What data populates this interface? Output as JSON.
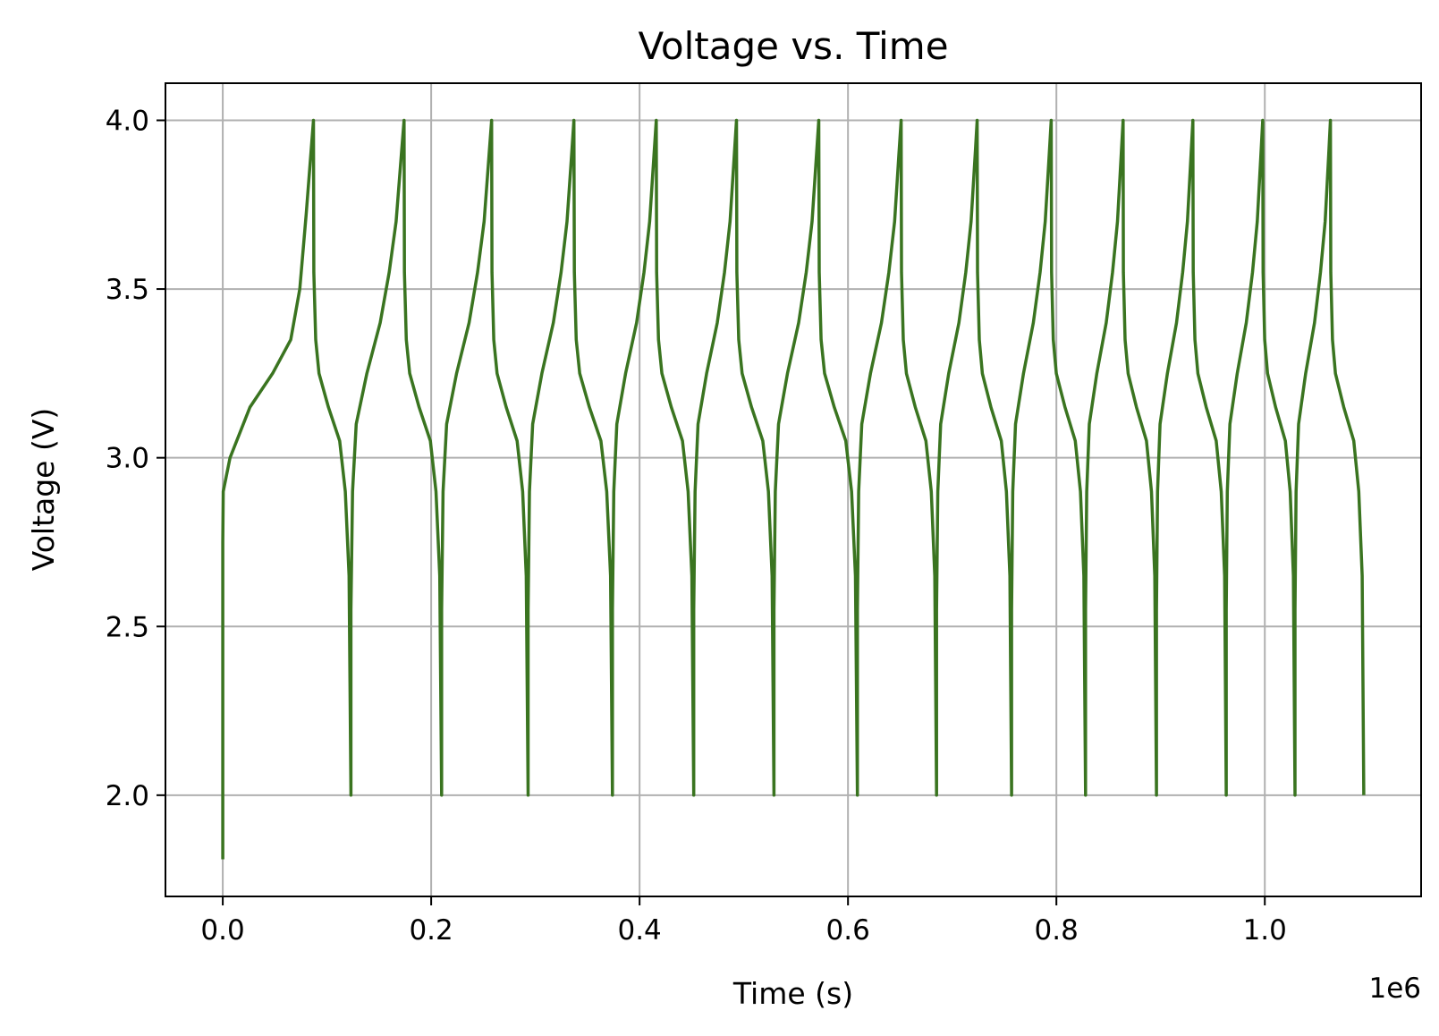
{
  "chart_data": {
    "type": "line",
    "title": "Voltage vs. Time",
    "xlabel": "Time (s)",
    "ylabel": "Voltage (V)",
    "x_multiplier_label": "1e6",
    "xlim": [
      -0.055,
      1.15
    ],
    "ylim": [
      1.7,
      4.11
    ],
    "x_ticks": [
      0.0,
      0.2,
      0.4,
      0.6,
      0.8,
      1.0
    ],
    "x_tick_labels": [
      "0.0",
      "0.2",
      "0.4",
      "0.6",
      "0.8",
      "1.0"
    ],
    "y_ticks": [
      2.0,
      2.5,
      3.0,
      3.5,
      4.0
    ],
    "y_tick_labels": [
      "2.0",
      "2.5",
      "3.0",
      "3.5",
      "4.0"
    ],
    "grid": true,
    "line_color": "#3a7420",
    "initial_point": [
      0.0,
      1.81
    ],
    "cycles": [
      {
        "charge_start": 0.0,
        "charge_end": 0.087,
        "discharge_end": 0.123
      },
      {
        "charge_start": 0.123,
        "charge_end": 0.174,
        "discharge_end": 0.21
      },
      {
        "charge_start": 0.21,
        "charge_end": 0.258,
        "discharge_end": 0.293
      },
      {
        "charge_start": 0.293,
        "charge_end": 0.337,
        "discharge_end": 0.374
      },
      {
        "charge_start": 0.374,
        "charge_end": 0.416,
        "discharge_end": 0.452
      },
      {
        "charge_start": 0.452,
        "charge_end": 0.493,
        "discharge_end": 0.529
      },
      {
        "charge_start": 0.529,
        "charge_end": 0.572,
        "discharge_end": 0.609
      },
      {
        "charge_start": 0.609,
        "charge_end": 0.651,
        "discharge_end": 0.685
      },
      {
        "charge_start": 0.685,
        "charge_end": 0.724,
        "discharge_end": 0.757
      },
      {
        "charge_start": 0.757,
        "charge_end": 0.795,
        "discharge_end": 0.828
      },
      {
        "charge_start": 0.828,
        "charge_end": 0.864,
        "discharge_end": 0.896
      },
      {
        "charge_start": 0.896,
        "charge_end": 0.931,
        "discharge_end": 0.963
      },
      {
        "charge_start": 0.963,
        "charge_end": 0.998,
        "discharge_end": 1.029
      },
      {
        "charge_start": 1.029,
        "charge_end": 1.063,
        "discharge_end": 1.095
      }
    ],
    "v_min": 2.0,
    "v_max": 4.0
  }
}
